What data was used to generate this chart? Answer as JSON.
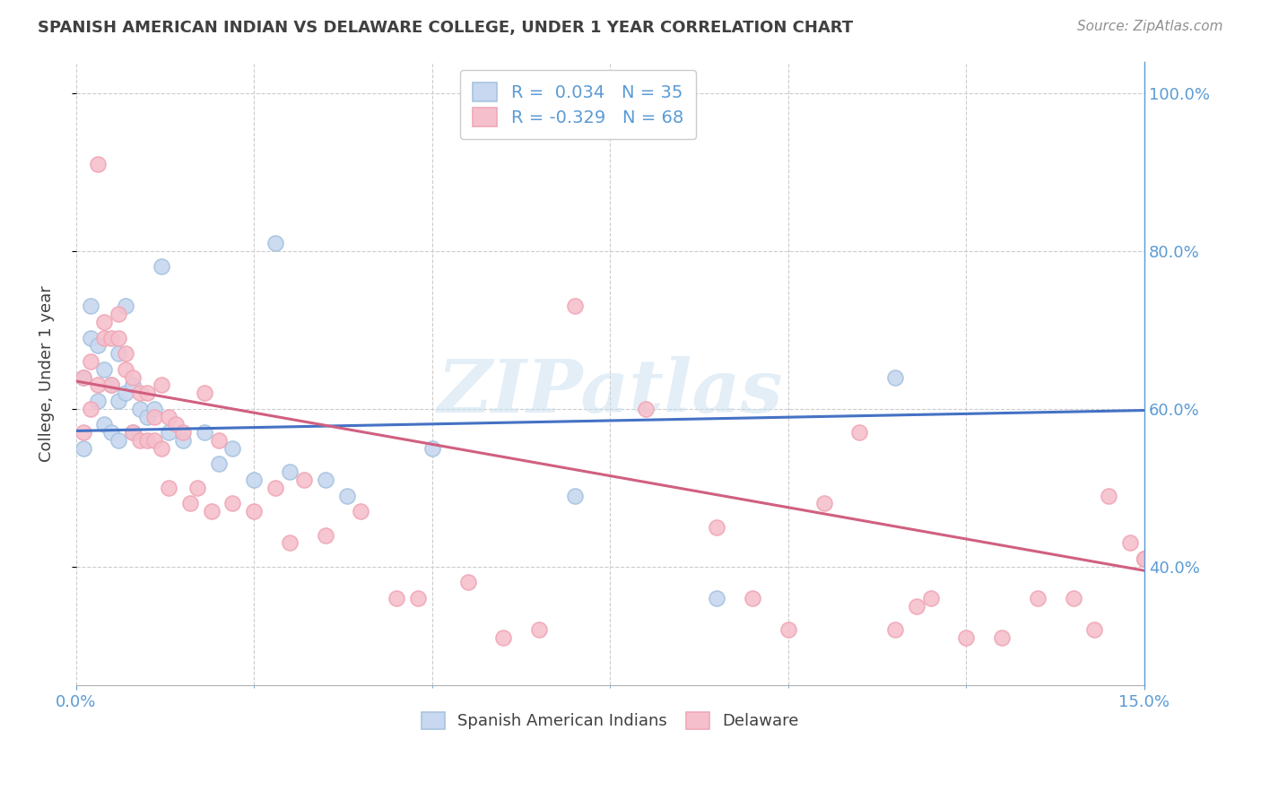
{
  "title": "SPANISH AMERICAN INDIAN VS DELAWARE COLLEGE, UNDER 1 YEAR CORRELATION CHART",
  "source": "Source: ZipAtlas.com",
  "ylabel": "College, Under 1 year",
  "legend_label1": "Spanish American Indians",
  "legend_label2": "Delaware",
  "R1": "0.034",
  "N1": "35",
  "R2": "-0.329",
  "N2": "68",
  "color_blue_edge": "#a8c4e0",
  "color_pink_edge": "#f0a8b8",
  "line_blue": "#4472c4",
  "line_pink": "#d06080",
  "dot_blue_fill": "#c8d8f0",
  "dot_pink_fill": "#f5c0cc",
  "watermark": "ZIPatlas",
  "background": "#ffffff",
  "grid_color": "#cccccc",
  "title_color": "#404040",
  "source_color": "#909090",
  "right_axis_color": "#5b9bd5",
  "xlim": [
    0.0,
    0.15
  ],
  "ylim": [
    0.25,
    1.04
  ],
  "yticks": [
    0.4,
    0.6,
    0.8,
    1.0
  ],
  "ytick_labels": [
    "40.0%",
    "60.0%",
    "80.0%",
    "100.0%"
  ],
  "xticks_major": [
    0.0,
    0.15
  ],
  "xtick_labels": [
    "0.0%",
    "15.0%"
  ],
  "xticks_minor": [
    0.0,
    0.025,
    0.05,
    0.075,
    0.1,
    0.125,
    0.15
  ],
  "blue_line_y0": 0.572,
  "blue_line_y1": 0.598,
  "pink_line_y0": 0.635,
  "pink_line_y1": 0.395,
  "blue_scatter_x": [
    0.001,
    0.001,
    0.002,
    0.002,
    0.003,
    0.003,
    0.004,
    0.004,
    0.005,
    0.005,
    0.006,
    0.006,
    0.006,
    0.007,
    0.007,
    0.008,
    0.008,
    0.009,
    0.01,
    0.011,
    0.012,
    0.013,
    0.015,
    0.018,
    0.02,
    0.022,
    0.025,
    0.028,
    0.03,
    0.035,
    0.038,
    0.05,
    0.07,
    0.09,
    0.115
  ],
  "blue_scatter_y": [
    0.64,
    0.55,
    0.73,
    0.69,
    0.68,
    0.61,
    0.65,
    0.58,
    0.63,
    0.57,
    0.67,
    0.61,
    0.56,
    0.73,
    0.62,
    0.63,
    0.57,
    0.6,
    0.59,
    0.6,
    0.78,
    0.57,
    0.56,
    0.57,
    0.53,
    0.55,
    0.51,
    0.81,
    0.52,
    0.51,
    0.49,
    0.55,
    0.49,
    0.36,
    0.64
  ],
  "pink_scatter_x": [
    0.001,
    0.001,
    0.002,
    0.002,
    0.003,
    0.003,
    0.004,
    0.004,
    0.005,
    0.005,
    0.006,
    0.006,
    0.007,
    0.007,
    0.008,
    0.008,
    0.009,
    0.009,
    0.01,
    0.01,
    0.011,
    0.011,
    0.012,
    0.012,
    0.013,
    0.013,
    0.014,
    0.015,
    0.016,
    0.017,
    0.018,
    0.019,
    0.02,
    0.022,
    0.025,
    0.028,
    0.03,
    0.032,
    0.035,
    0.04,
    0.045,
    0.048,
    0.055,
    0.06,
    0.065,
    0.07,
    0.08,
    0.09,
    0.095,
    0.1,
    0.105,
    0.11,
    0.115,
    0.118,
    0.12,
    0.125,
    0.13,
    0.135,
    0.14,
    0.143,
    0.145,
    0.148,
    0.15,
    0.15,
    0.15,
    0.15,
    0.15,
    0.15
  ],
  "pink_scatter_y": [
    0.64,
    0.57,
    0.66,
    0.6,
    0.63,
    0.91,
    0.69,
    0.71,
    0.69,
    0.63,
    0.72,
    0.69,
    0.67,
    0.65,
    0.64,
    0.57,
    0.62,
    0.56,
    0.62,
    0.56,
    0.59,
    0.56,
    0.63,
    0.55,
    0.59,
    0.5,
    0.58,
    0.57,
    0.48,
    0.5,
    0.62,
    0.47,
    0.56,
    0.48,
    0.47,
    0.5,
    0.43,
    0.51,
    0.44,
    0.47,
    0.36,
    0.36,
    0.38,
    0.31,
    0.32,
    0.73,
    0.6,
    0.45,
    0.36,
    0.32,
    0.48,
    0.57,
    0.32,
    0.35,
    0.36,
    0.31,
    0.31,
    0.36,
    0.36,
    0.32,
    0.49,
    0.43,
    0.41,
    0.41,
    0.41,
    0.41,
    0.41,
    0.41
  ]
}
